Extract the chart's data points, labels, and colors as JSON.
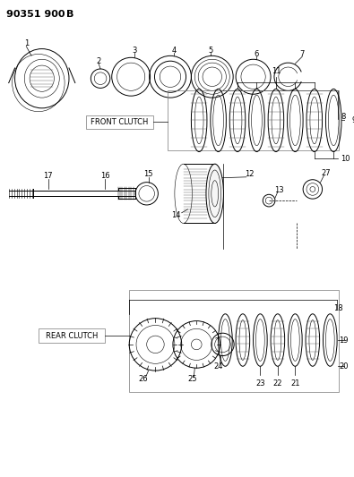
{
  "title": "90351 900 B",
  "bg_color": "#ffffff",
  "line_color": "#000000",
  "font_size_title": 8,
  "font_size_labels": 6,
  "front_clutch_label": "FRONT CLUTCH",
  "rear_clutch_label": "REAR CLUTCH"
}
